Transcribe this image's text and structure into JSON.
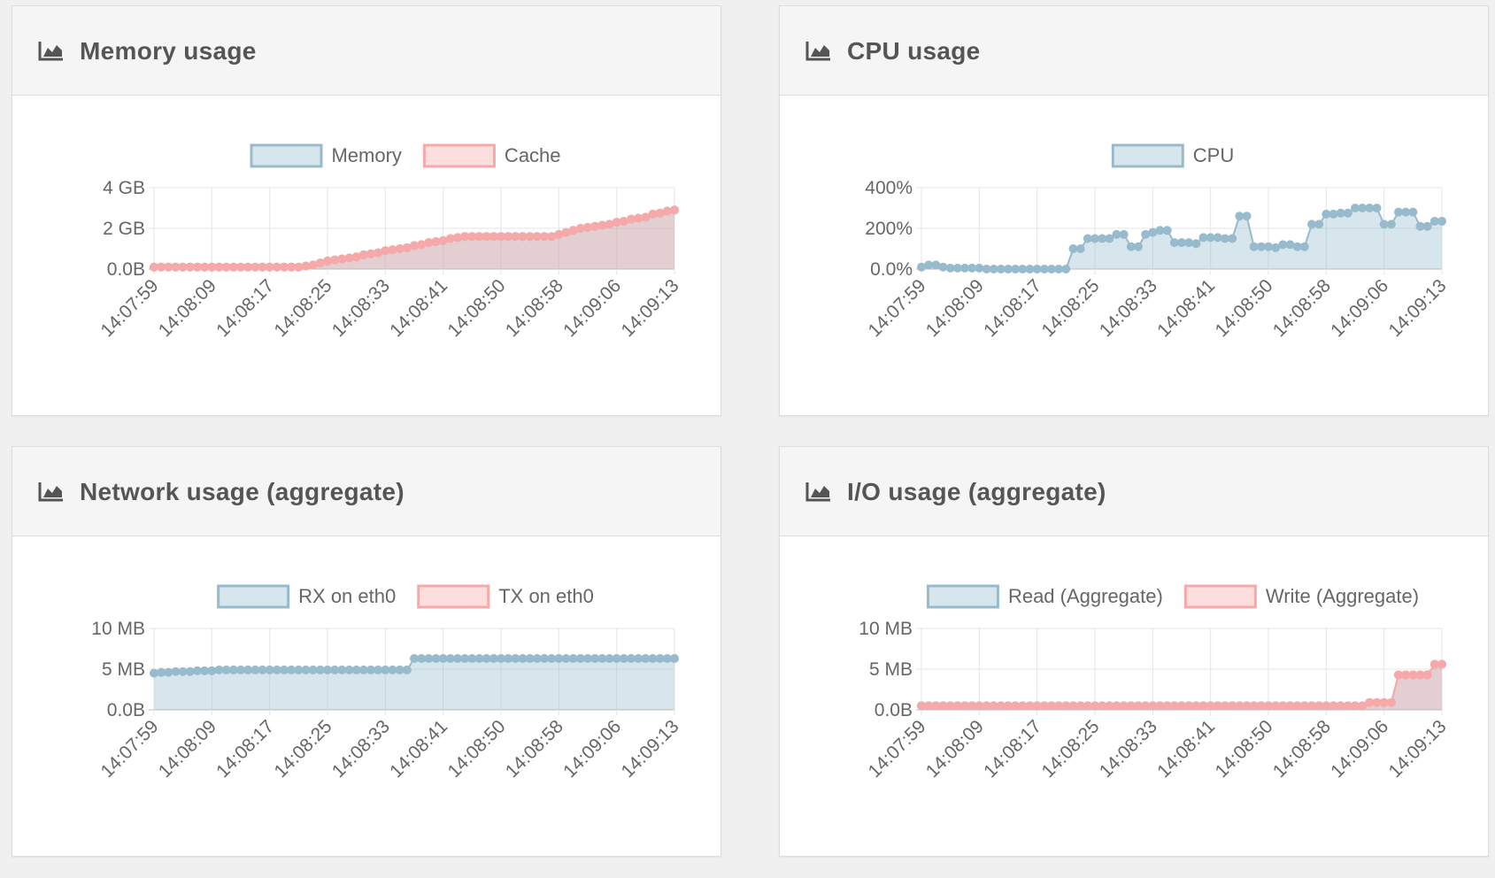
{
  "chart_data": [
    {
      "type": "line",
      "title": "Memory usage",
      "categories": [
        "14:07:59",
        null,
        null,
        null,
        null,
        null,
        null,
        null,
        "14:08:09",
        null,
        null,
        null,
        null,
        null,
        null,
        null,
        "14:08:17",
        null,
        null,
        null,
        null,
        null,
        null,
        null,
        "14:08:25",
        null,
        null,
        null,
        null,
        null,
        null,
        null,
        "14:08:33",
        null,
        null,
        null,
        null,
        null,
        null,
        null,
        "14:08:41",
        null,
        null,
        null,
        null,
        null,
        null,
        null,
        "14:08:50",
        null,
        null,
        null,
        null,
        null,
        null,
        null,
        "14:08:58",
        null,
        null,
        null,
        null,
        null,
        null,
        null,
        "14:09:06",
        null,
        null,
        null,
        null,
        null,
        null,
        null,
        "14:09:13"
      ],
      "series": [
        {
          "name": "Memory",
          "color": "#97bbcd",
          "values": [
            0.1,
            0.1,
            0.1,
            0.1,
            0.1,
            0.1,
            0.1,
            0.1,
            0.1,
            0.1,
            0.1,
            0.1,
            0.1,
            0.1,
            0.1,
            0.1,
            0.1,
            0.1,
            0.1,
            0.1,
            0.1,
            0.15,
            0.2,
            0.3,
            0.4,
            0.45,
            0.5,
            0.55,
            0.6,
            0.7,
            0.75,
            0.8,
            0.9,
            0.95,
            1.0,
            1.05,
            1.15,
            1.2,
            1.3,
            1.35,
            1.4,
            1.5,
            1.55,
            1.6,
            1.6,
            1.6,
            1.6,
            1.6,
            1.6,
            1.6,
            1.6,
            1.6,
            1.6,
            1.6,
            1.6,
            1.6,
            1.7,
            1.8,
            1.9,
            2.0,
            2.05,
            2.1,
            2.15,
            2.2,
            2.3,
            2.35,
            2.45,
            2.5,
            2.55,
            2.7,
            2.75,
            2.85,
            2.9
          ]
        },
        {
          "name": "Cache",
          "color": "#f7a8a8",
          "values": [
            0.1,
            0.1,
            0.1,
            0.1,
            0.1,
            0.1,
            0.1,
            0.1,
            0.1,
            0.1,
            0.1,
            0.1,
            0.1,
            0.1,
            0.1,
            0.1,
            0.1,
            0.1,
            0.1,
            0.1,
            0.1,
            0.15,
            0.2,
            0.3,
            0.4,
            0.45,
            0.5,
            0.55,
            0.6,
            0.7,
            0.75,
            0.8,
            0.9,
            0.95,
            1.0,
            1.05,
            1.15,
            1.2,
            1.3,
            1.35,
            1.4,
            1.5,
            1.55,
            1.6,
            1.6,
            1.6,
            1.6,
            1.6,
            1.6,
            1.6,
            1.6,
            1.6,
            1.6,
            1.6,
            1.6,
            1.6,
            1.7,
            1.8,
            1.9,
            2.0,
            2.05,
            2.1,
            2.15,
            2.2,
            2.3,
            2.35,
            2.45,
            2.5,
            2.55,
            2.7,
            2.75,
            2.85,
            2.9
          ]
        }
      ],
      "ylim": [
        0,
        4
      ],
      "yticks": [
        {
          "value": 0,
          "label": "0.0B"
        },
        {
          "value": 2,
          "label": "2 GB"
        },
        {
          "value": 4,
          "label": "4 GB"
        }
      ],
      "grid": true
    },
    {
      "type": "line",
      "title": "CPU usage",
      "categories": [
        "14:07:59",
        null,
        null,
        null,
        null,
        null,
        null,
        null,
        "14:08:09",
        null,
        null,
        null,
        null,
        null,
        null,
        null,
        "14:08:17",
        null,
        null,
        null,
        null,
        null,
        null,
        null,
        "14:08:25",
        null,
        null,
        null,
        null,
        null,
        null,
        null,
        "14:08:33",
        null,
        null,
        null,
        null,
        null,
        null,
        null,
        "14:08:41",
        null,
        null,
        null,
        null,
        null,
        null,
        null,
        "14:08:50",
        null,
        null,
        null,
        null,
        null,
        null,
        null,
        "14:08:58",
        null,
        null,
        null,
        null,
        null,
        null,
        null,
        "14:09:06",
        null,
        null,
        null,
        null,
        null,
        null,
        null,
        "14:09:13"
      ],
      "series": [
        {
          "name": "CPU",
          "color": "#97bbcd",
          "values": [
            10,
            20,
            20,
            10,
            5,
            5,
            5,
            5,
            5,
            0,
            0,
            0,
            0,
            0,
            0,
            0,
            0,
            0,
            0,
            0,
            0,
            100,
            100,
            150,
            150,
            150,
            150,
            170,
            170,
            110,
            110,
            170,
            180,
            190,
            190,
            130,
            130,
            130,
            125,
            155,
            155,
            155,
            150,
            150,
            260,
            260,
            110,
            110,
            110,
            105,
            120,
            120,
            110,
            110,
            220,
            220,
            270,
            270,
            275,
            275,
            300,
            300,
            300,
            300,
            220,
            220,
            280,
            280,
            280,
            210,
            210,
            235,
            235
          ]
        }
      ],
      "ylim": [
        0,
        400
      ],
      "yticks": [
        {
          "value": 0,
          "label": "0.0%"
        },
        {
          "value": 200,
          "label": "200%"
        },
        {
          "value": 400,
          "label": "400%"
        }
      ],
      "grid": true
    },
    {
      "type": "line",
      "title": "Network usage (aggregate)",
      "categories": [
        "14:07:59",
        null,
        null,
        null,
        null,
        null,
        null,
        null,
        "14:08:09",
        null,
        null,
        null,
        null,
        null,
        null,
        null,
        "14:08:17",
        null,
        null,
        null,
        null,
        null,
        null,
        null,
        "14:08:25",
        null,
        null,
        null,
        null,
        null,
        null,
        null,
        "14:08:33",
        null,
        null,
        null,
        null,
        null,
        null,
        null,
        "14:08:41",
        null,
        null,
        null,
        null,
        null,
        null,
        null,
        "14:08:50",
        null,
        null,
        null,
        null,
        null,
        null,
        null,
        "14:08:58",
        null,
        null,
        null,
        null,
        null,
        null,
        null,
        "14:09:06",
        null,
        null,
        null,
        null,
        null,
        null,
        null,
        "14:09:13"
      ],
      "series": [
        {
          "name": "RX on eth0",
          "color": "#97bbcd",
          "values": [
            4.5,
            4.6,
            4.6,
            4.7,
            4.7,
            4.7,
            4.8,
            4.8,
            4.8,
            4.9,
            4.9,
            4.9,
            4.9,
            4.9,
            4.9,
            4.9,
            4.9,
            4.9,
            4.9,
            4.9,
            4.9,
            4.9,
            4.9,
            4.9,
            4.9,
            4.9,
            4.9,
            4.9,
            4.9,
            4.9,
            4.9,
            4.9,
            4.9,
            4.9,
            4.9,
            4.9,
            6.3,
            6.3,
            6.3,
            6.3,
            6.3,
            6.3,
            6.3,
            6.3,
            6.3,
            6.3,
            6.3,
            6.3,
            6.3,
            6.3,
            6.3,
            6.3,
            6.3,
            6.3,
            6.3,
            6.3,
            6.3,
            6.3,
            6.3,
            6.3,
            6.3,
            6.3,
            6.3,
            6.3,
            6.3,
            6.3,
            6.3,
            6.3,
            6.3,
            6.3,
            6.3,
            6.3,
            6.3
          ]
        },
        {
          "name": "TX on eth0",
          "color": "#f7a8a8"
        }
      ],
      "ylim": [
        0,
        10
      ],
      "yticks": [
        {
          "value": 0,
          "label": "0.0B"
        },
        {
          "value": 5,
          "label": "5 MB"
        },
        {
          "value": 10,
          "label": "10 MB"
        }
      ],
      "grid": true
    },
    {
      "type": "line",
      "title": "I/O usage (aggregate)",
      "categories": [
        "14:07:59",
        null,
        null,
        null,
        null,
        null,
        null,
        null,
        "14:08:09",
        null,
        null,
        null,
        null,
        null,
        null,
        null,
        "14:08:17",
        null,
        null,
        null,
        null,
        null,
        null,
        null,
        "14:08:25",
        null,
        null,
        null,
        null,
        null,
        null,
        null,
        "14:08:33",
        null,
        null,
        null,
        null,
        null,
        null,
        null,
        "14:08:41",
        null,
        null,
        null,
        null,
        null,
        null,
        null,
        "14:08:50",
        null,
        null,
        null,
        null,
        null,
        null,
        null,
        "14:08:58",
        null,
        null,
        null,
        null,
        null,
        null,
        null,
        "14:09:06",
        null,
        null,
        null,
        null,
        null,
        null,
        null,
        "14:09:13"
      ],
      "series": [
        {
          "name": "Read (Aggregate)",
          "color": "#97bbcd",
          "values": [
            0.5,
            0.5,
            0.5,
            0.5,
            0.5,
            0.5,
            0.5,
            0.5,
            0.5,
            0.5,
            0.5,
            0.5,
            0.5,
            0.5,
            0.5,
            0.5,
            0.5,
            0.5,
            0.5,
            0.5,
            0.5,
            0.5,
            0.5,
            0.5,
            0.5,
            0.5,
            0.5,
            0.5,
            0.5,
            0.5,
            0.5,
            0.5,
            0.5,
            0.5,
            0.5,
            0.5,
            0.5,
            0.5,
            0.5,
            0.5,
            0.5,
            0.5,
            0.5,
            0.5,
            0.5,
            0.5,
            0.5,
            0.5,
            0.5,
            0.5,
            0.5,
            0.5,
            0.5,
            0.5,
            0.5,
            0.5,
            0.5,
            0.5,
            0.5,
            0.5,
            0.5,
            0.5,
            0.9,
            0.9,
            0.9,
            0.9,
            4.3,
            4.3,
            4.3,
            4.3,
            4.3,
            5.6,
            5.6
          ]
        },
        {
          "name": "Write (Aggregate)",
          "color": "#f7a8a8",
          "values": [
            0.5,
            0.5,
            0.5,
            0.5,
            0.5,
            0.5,
            0.5,
            0.5,
            0.5,
            0.5,
            0.5,
            0.5,
            0.5,
            0.5,
            0.5,
            0.5,
            0.5,
            0.5,
            0.5,
            0.5,
            0.5,
            0.5,
            0.5,
            0.5,
            0.5,
            0.5,
            0.5,
            0.5,
            0.5,
            0.5,
            0.5,
            0.5,
            0.5,
            0.5,
            0.5,
            0.5,
            0.5,
            0.5,
            0.5,
            0.5,
            0.5,
            0.5,
            0.5,
            0.5,
            0.5,
            0.5,
            0.5,
            0.5,
            0.5,
            0.5,
            0.5,
            0.5,
            0.5,
            0.5,
            0.5,
            0.5,
            0.5,
            0.5,
            0.5,
            0.5,
            0.5,
            0.5,
            0.9,
            0.9,
            0.9,
            0.9,
            4.3,
            4.3,
            4.3,
            4.3,
            4.3,
            5.6,
            5.6
          ]
        }
      ],
      "ylim": [
        0,
        10
      ],
      "yticks": [
        {
          "value": 0,
          "label": "0.0B"
        },
        {
          "value": 5,
          "label": "5 MB"
        },
        {
          "value": 10,
          "label": "10 MB"
        }
      ],
      "grid": true
    }
  ]
}
